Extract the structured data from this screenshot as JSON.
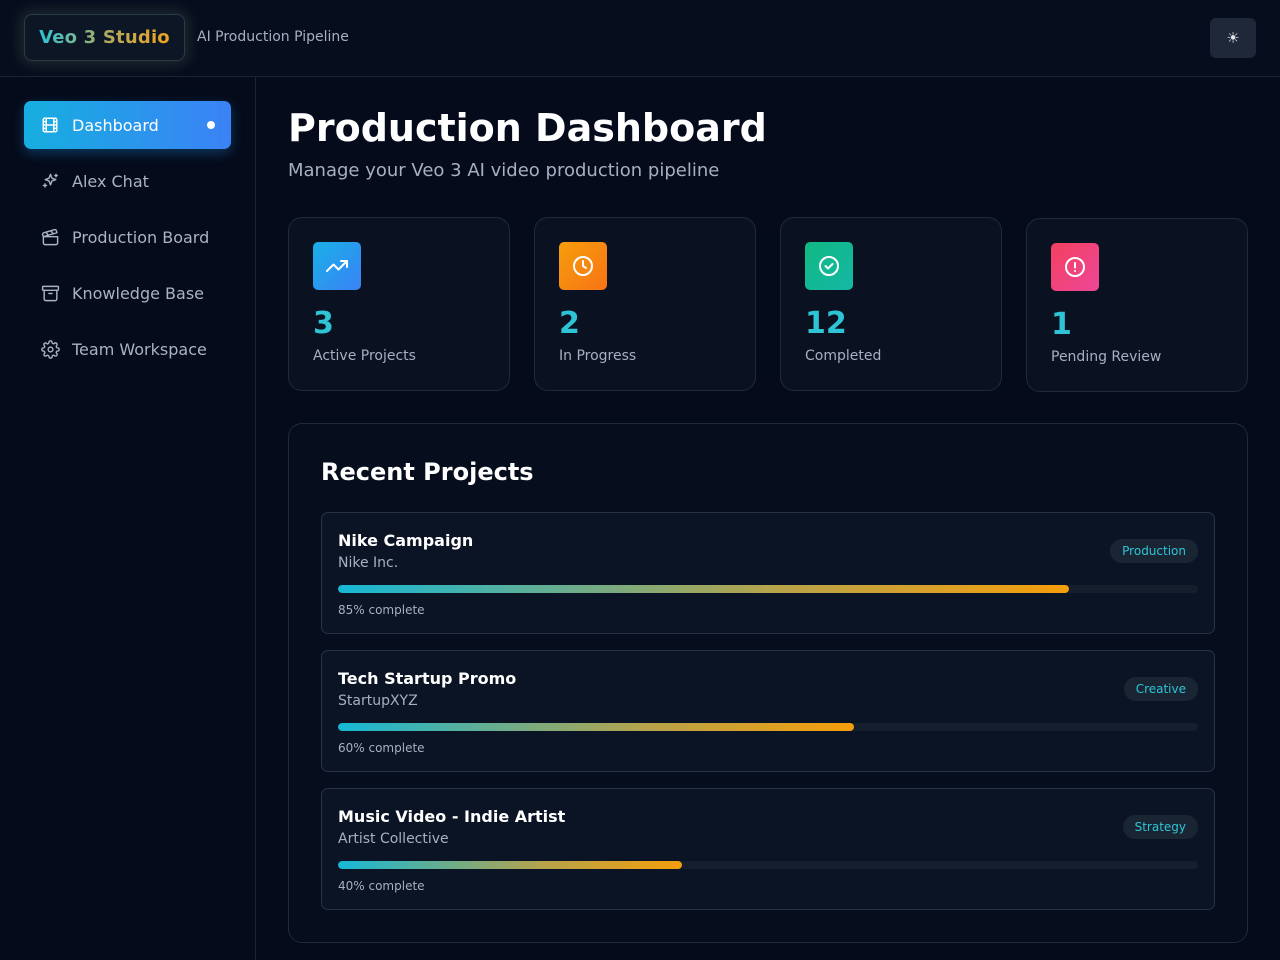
{
  "header": {
    "logo": "Veo 3 Studio",
    "subtitle": "AI Production Pipeline",
    "theme_toggle": "☀"
  },
  "sidebar": {
    "items": [
      {
        "label": "Dashboard",
        "icon": "film-icon",
        "active": true
      },
      {
        "label": "Alex Chat",
        "icon": "sparkles-icon",
        "active": false
      },
      {
        "label": "Production Board",
        "icon": "clapperboard-icon",
        "active": false
      },
      {
        "label": "Knowledge Base",
        "icon": "archive-icon",
        "active": false
      },
      {
        "label": "Team Workspace",
        "icon": "gear-icon",
        "active": false
      }
    ]
  },
  "main": {
    "title": "Production Dashboard",
    "subtitle": "Manage your Veo 3 AI video production pipeline"
  },
  "stats": [
    {
      "value": "3",
      "label": "Active Projects",
      "icon": "trending-up-icon",
      "color": "#1ea5e8"
    },
    {
      "value": "2",
      "label": "In Progress",
      "icon": "clock-icon",
      "color": "#f28a14"
    },
    {
      "value": "12",
      "label": "Completed",
      "icon": "check-circle-icon",
      "color": "#12b396"
    },
    {
      "value": "1",
      "label": "Pending Review",
      "icon": "alert-circle-icon",
      "color": "#ec4a7c"
    }
  ],
  "recent": {
    "title": "Recent Projects",
    "projects": [
      {
        "name": "Nike Campaign",
        "client": "Nike Inc.",
        "status": "Production",
        "progress": 85,
        "progress_text": "85% complete"
      },
      {
        "name": "Tech Startup Promo",
        "client": "StartupXYZ",
        "status": "Creative",
        "progress": 60,
        "progress_text": "60% complete"
      },
      {
        "name": "Music Video - Indie Artist",
        "client": "Artist Collective",
        "status": "Strategy",
        "progress": 40,
        "progress_text": "40% complete"
      }
    ]
  },
  "colors": {
    "accent": "#2ec4d6",
    "background": "#050b1a"
  }
}
